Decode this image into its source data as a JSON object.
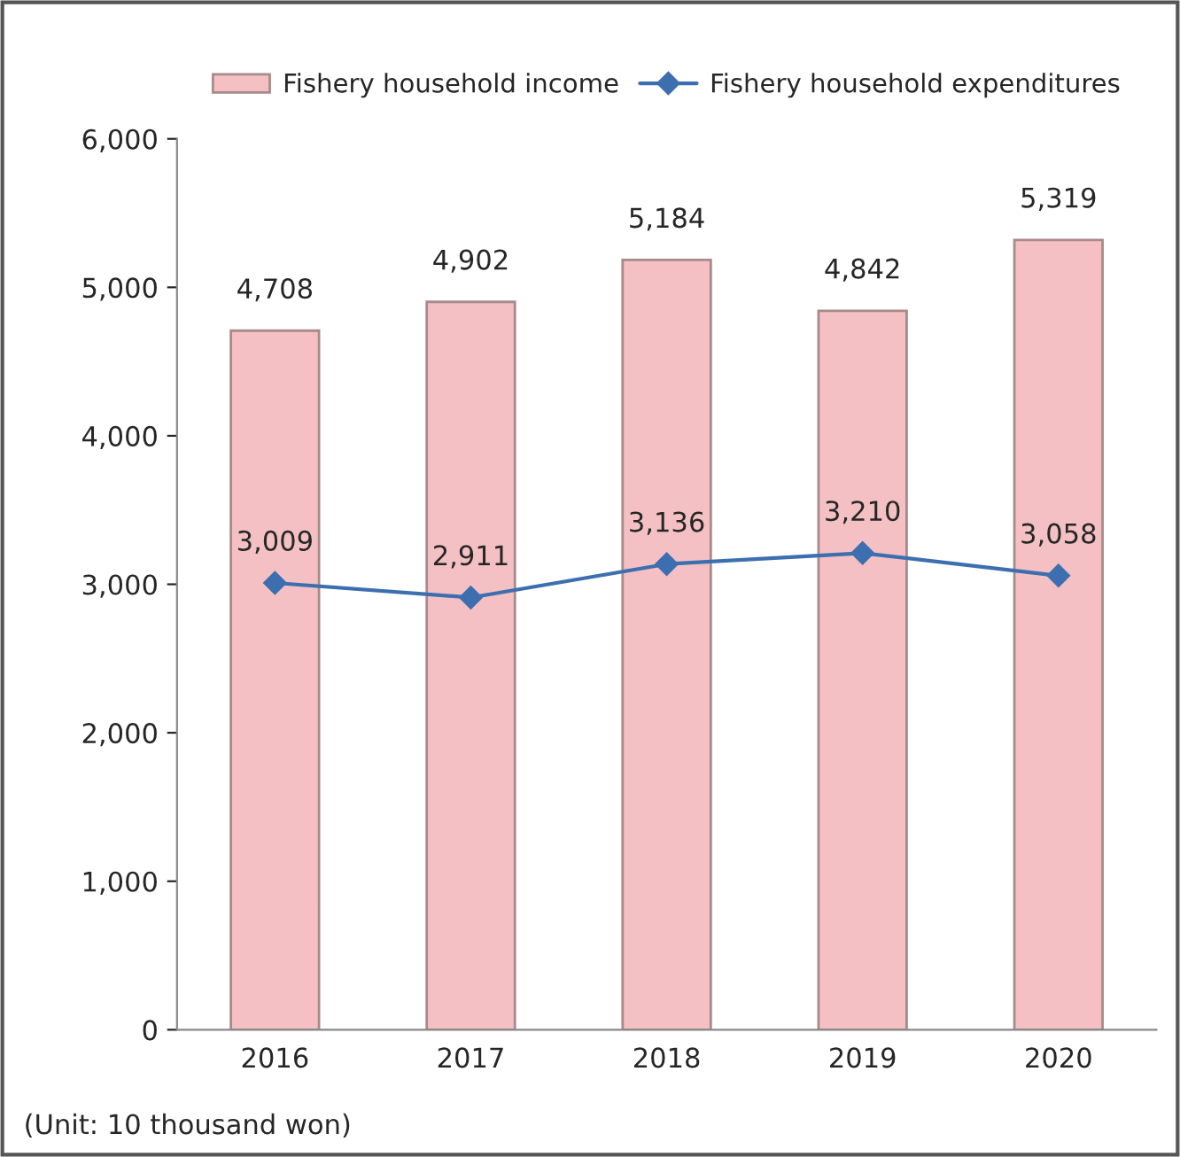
{
  "chart_data": {
    "type": "bar",
    "categories": [
      "2016",
      "2017",
      "2018",
      "2019",
      "2020"
    ],
    "series": [
      {
        "name": "Fishery household income",
        "color": "#f4c0c3",
        "values": [
          4708,
          4902,
          5184,
          4842,
          5319
        ],
        "value_labels": [
          "4,708",
          "4,902",
          "5,184",
          "4,842",
          "5,319"
        ]
      },
      {
        "name": "Fishery household expenditures",
        "type": "line",
        "color": "#3d6fb0",
        "values": [
          3009,
          2911,
          3136,
          3210,
          3058
        ],
        "value_labels": [
          "3,009",
          "2,911",
          "3,136",
          "3,210",
          "3,058"
        ],
        "marker": "diamond"
      }
    ],
    "ylim": [
      0,
      6000
    ],
    "yticks": [
      {
        "value": 0,
        "label": "0"
      },
      {
        "value": 1000,
        "label": "1,000"
      },
      {
        "value": 2000,
        "label": "2,000"
      },
      {
        "value": 3000,
        "label": "3,000"
      },
      {
        "value": 4000,
        "label": "4,000"
      },
      {
        "value": 5000,
        "label": "5,000"
      },
      {
        "value": 6000,
        "label": "6,000"
      }
    ],
    "grid": false,
    "legend": "top",
    "annotations": [
      "(Unit: 10 thousand won)"
    ]
  }
}
